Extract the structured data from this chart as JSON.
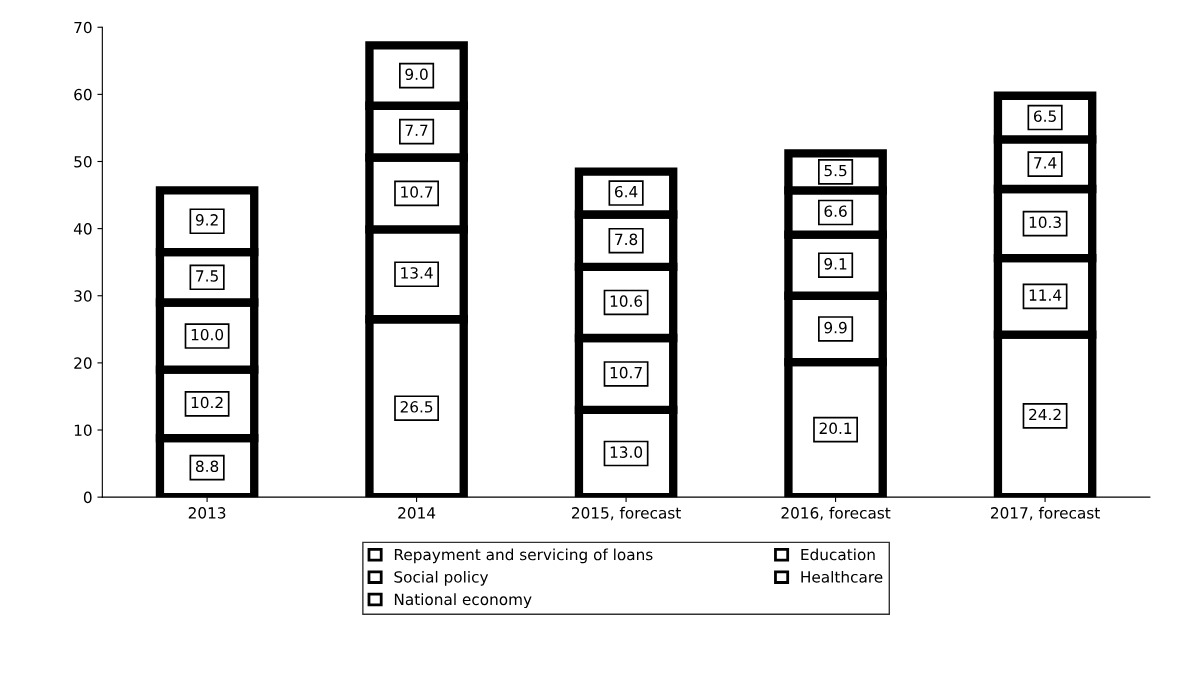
{
  "chart_data": {
    "type": "bar",
    "stacked": true,
    "categories": [
      "2013",
      "2014",
      "2015, forecast",
      "2016, forecast",
      "2017, forecast"
    ],
    "series": [
      {
        "name": "Repayment and servicing of loans",
        "color": "#ffffff",
        "values": [
          8.8,
          26.5,
          13.0,
          20.1,
          24.2
        ],
        "value_labels": [
          "8.8",
          "26.5",
          "13.0",
          "20.1",
          "24.2"
        ]
      },
      {
        "name": "Education",
        "color": "#ffffff",
        "values": [
          10.2,
          13.4,
          10.7,
          9.9,
          11.4
        ],
        "value_labels": [
          "10.2",
          "13.4",
          "10.7",
          "9.9",
          "11.4"
        ]
      },
      {
        "name": "Social policy",
        "color": "#ffffff",
        "values": [
          10.0,
          10.7,
          10.6,
          9.1,
          10.3
        ],
        "value_labels": [
          "10.0",
          "10.7",
          "10.6",
          "9.1",
          "10.3"
        ]
      },
      {
        "name": "Healthcare",
        "color": "#ffffff",
        "values": [
          7.5,
          7.7,
          7.8,
          6.6,
          7.4
        ],
        "value_labels": [
          "7.5",
          "7.7",
          "7.8",
          "6.6",
          "7.4"
        ]
      },
      {
        "name": "National economy",
        "color": "#ffffff",
        "values": [
          9.2,
          9.0,
          6.4,
          5.5,
          6.5
        ],
        "value_labels": [
          "9.2",
          "9.0",
          "6.4",
          "5.5",
          "6.5"
        ]
      }
    ],
    "ylim": [
      0,
      70
    ],
    "yticks": [
      0,
      10,
      20,
      30,
      40,
      50,
      60,
      70
    ],
    "grid": false,
    "legend": "bottom"
  }
}
